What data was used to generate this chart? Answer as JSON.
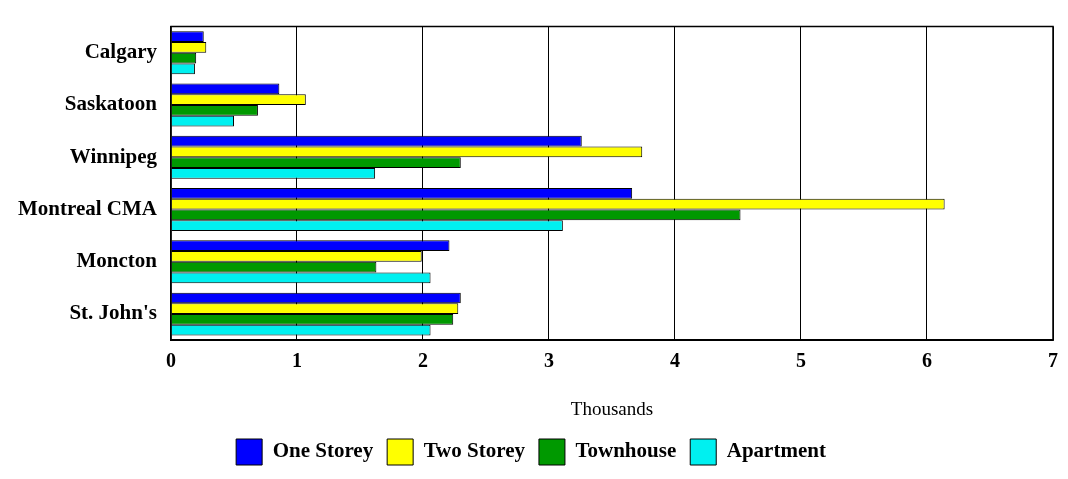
{
  "chart_data": {
    "type": "bar",
    "orientation": "horizontal",
    "xlabel": "Thousands",
    "categories": [
      "Calgary",
      "Saskatoon",
      "Winnipeg",
      "Montreal CMA",
      "Moncton",
      "St. John's"
    ],
    "series": [
      {
        "name": "One Storey",
        "color": "#0000ff",
        "values": [
          0.26,
          0.86,
          3.26,
          3.66,
          2.21,
          2.3
        ]
      },
      {
        "name": "Two Storey",
        "color": "#ffff00",
        "values": [
          0.28,
          1.07,
          3.74,
          6.14,
          1.99,
          2.28
        ]
      },
      {
        "name": "Townhouse",
        "color": "#009900",
        "values": [
          0.2,
          0.69,
          2.3,
          4.52,
          1.63,
          2.24
        ]
      },
      {
        "name": "Apartment",
        "color": "#00f0f0",
        "values": [
          0.19,
          0.5,
          1.62,
          3.11,
          2.06,
          2.06
        ]
      }
    ],
    "xlim": [
      0,
      7
    ],
    "xticks": [
      0,
      1,
      2,
      3,
      4,
      5,
      6,
      7
    ],
    "grid": "x",
    "legend": "bottom"
  }
}
